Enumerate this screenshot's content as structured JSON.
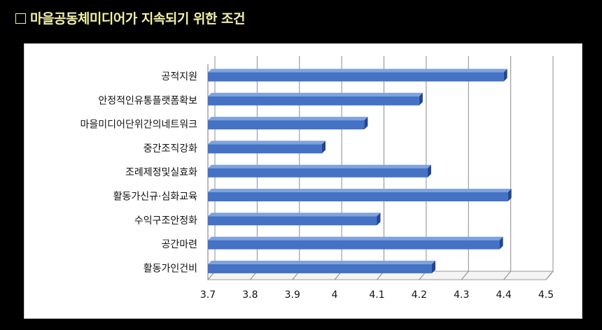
{
  "heading": {
    "text": "마을공동체미디어가 지속되기 위한 조건"
  },
  "chart_data": {
    "type": "bar",
    "orientation": "horizontal",
    "categories": [
      "공적지원",
      "안정적인유통플랫폼확보",
      "마을미디어단위간의네트워크",
      "중간조직강화",
      "조례제정및실효화",
      "활동가신규·심화교육",
      "수익구조안정화",
      "공간마련",
      "활동가인건비"
    ],
    "values": [
      4.4,
      4.2,
      4.07,
      3.97,
      4.22,
      4.41,
      4.1,
      4.39,
      4.23
    ],
    "xlim": [
      3.7,
      4.5
    ],
    "xticks": [
      "3.7",
      "3.8",
      "3.9",
      "4",
      "4.1",
      "4.2",
      "4.3",
      "4.4",
      "4.5"
    ],
    "grid": true,
    "bar_color": "#4472c4",
    "style": "3d"
  }
}
